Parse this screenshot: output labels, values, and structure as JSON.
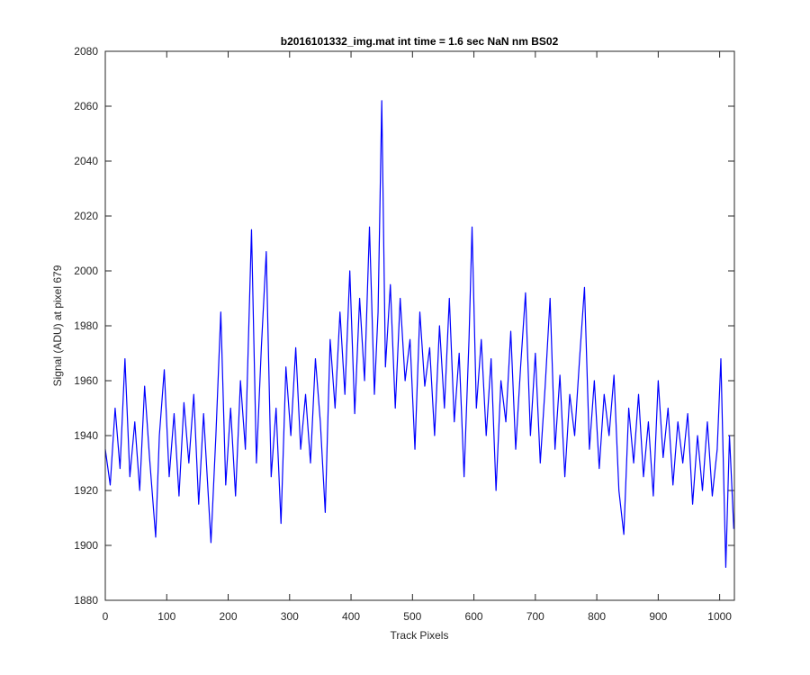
{
  "chart_data": {
    "type": "line",
    "title": "b2016101332_img.mat int time = 1.6 sec  NaN nm BS02",
    "x_label": "Track Pixels",
    "y_label": "Signal (ADU) at pixel 679",
    "xlim": [
      0,
      1024
    ],
    "ylim": [
      1880,
      2080
    ],
    "xticks": [
      0,
      100,
      200,
      300,
      400,
      500,
      600,
      700,
      800,
      900,
      1000
    ],
    "yticks": [
      1880,
      1900,
      1920,
      1940,
      1960,
      1980,
      2000,
      2020,
      2040,
      2060,
      2080
    ],
    "x": [
      0,
      8,
      16,
      24,
      32,
      40,
      48,
      56,
      64,
      72,
      82,
      88,
      96,
      104,
      112,
      120,
      128,
      136,
      144,
      152,
      160,
      172,
      180,
      188,
      196,
      204,
      212,
      220,
      228,
      238,
      246,
      254,
      262,
      270,
      278,
      286,
      294,
      302,
      310,
      318,
      326,
      334,
      342,
      350,
      358,
      366,
      374,
      382,
      390,
      398,
      406,
      414,
      422,
      430,
      438,
      444,
      450,
      456,
      464,
      472,
      480,
      488,
      496,
      504,
      512,
      520,
      528,
      536,
      544,
      552,
      560,
      568,
      576,
      584,
      592,
      597,
      604,
      612,
      620,
      628,
      636,
      644,
      652,
      660,
      668,
      676,
      684,
      692,
      700,
      708,
      716,
      724,
      732,
      740,
      748,
      756,
      764,
      772,
      780,
      788,
      796,
      804,
      812,
      820,
      828,
      836,
      844,
      852,
      860,
      868,
      876,
      884,
      892,
      900,
      908,
      916,
      924,
      932,
      940,
      948,
      956,
      964,
      972,
      980,
      988,
      996,
      1002,
      1010,
      1016,
      1023
    ],
    "series": [
      {
        "color": "#0000ff",
        "values": [
          1935,
          1922,
          1950,
          1928,
          1968,
          1925,
          1945,
          1920,
          1958,
          1932,
          1903,
          1940,
          1964,
          1925,
          1948,
          1918,
          1952,
          1930,
          1955,
          1915,
          1948,
          1901,
          1940,
          1985,
          1922,
          1950,
          1918,
          1960,
          1935,
          2015,
          1930,
          1972,
          2007,
          1925,
          1950,
          1908,
          1965,
          1940,
          1972,
          1935,
          1955,
          1930,
          1968,
          1945,
          1912,
          1975,
          1950,
          1985,
          1955,
          2000,
          1948,
          1990,
          1960,
          2016,
          1955,
          1985,
          2062,
          1965,
          1995,
          1950,
          1990,
          1960,
          1975,
          1935,
          1985,
          1958,
          1972,
          1940,
          1980,
          1950,
          1990,
          1945,
          1970,
          1925,
          1975,
          2016,
          1950,
          1975,
          1940,
          1968,
          1920,
          1960,
          1945,
          1978,
          1935,
          1965,
          1992,
          1940,
          1970,
          1930,
          1958,
          1990,
          1935,
          1962,
          1925,
          1955,
          1940,
          1968,
          1994,
          1935,
          1960,
          1928,
          1955,
          1940,
          1962,
          1920,
          1904,
          1950,
          1930,
          1955,
          1925,
          1945,
          1918,
          1960,
          1932,
          1950,
          1922,
          1945,
          1930,
          1948,
          1915,
          1940,
          1920,
          1945,
          1918,
          1935,
          1968,
          1892,
          1940,
          1906
        ]
      }
    ]
  }
}
